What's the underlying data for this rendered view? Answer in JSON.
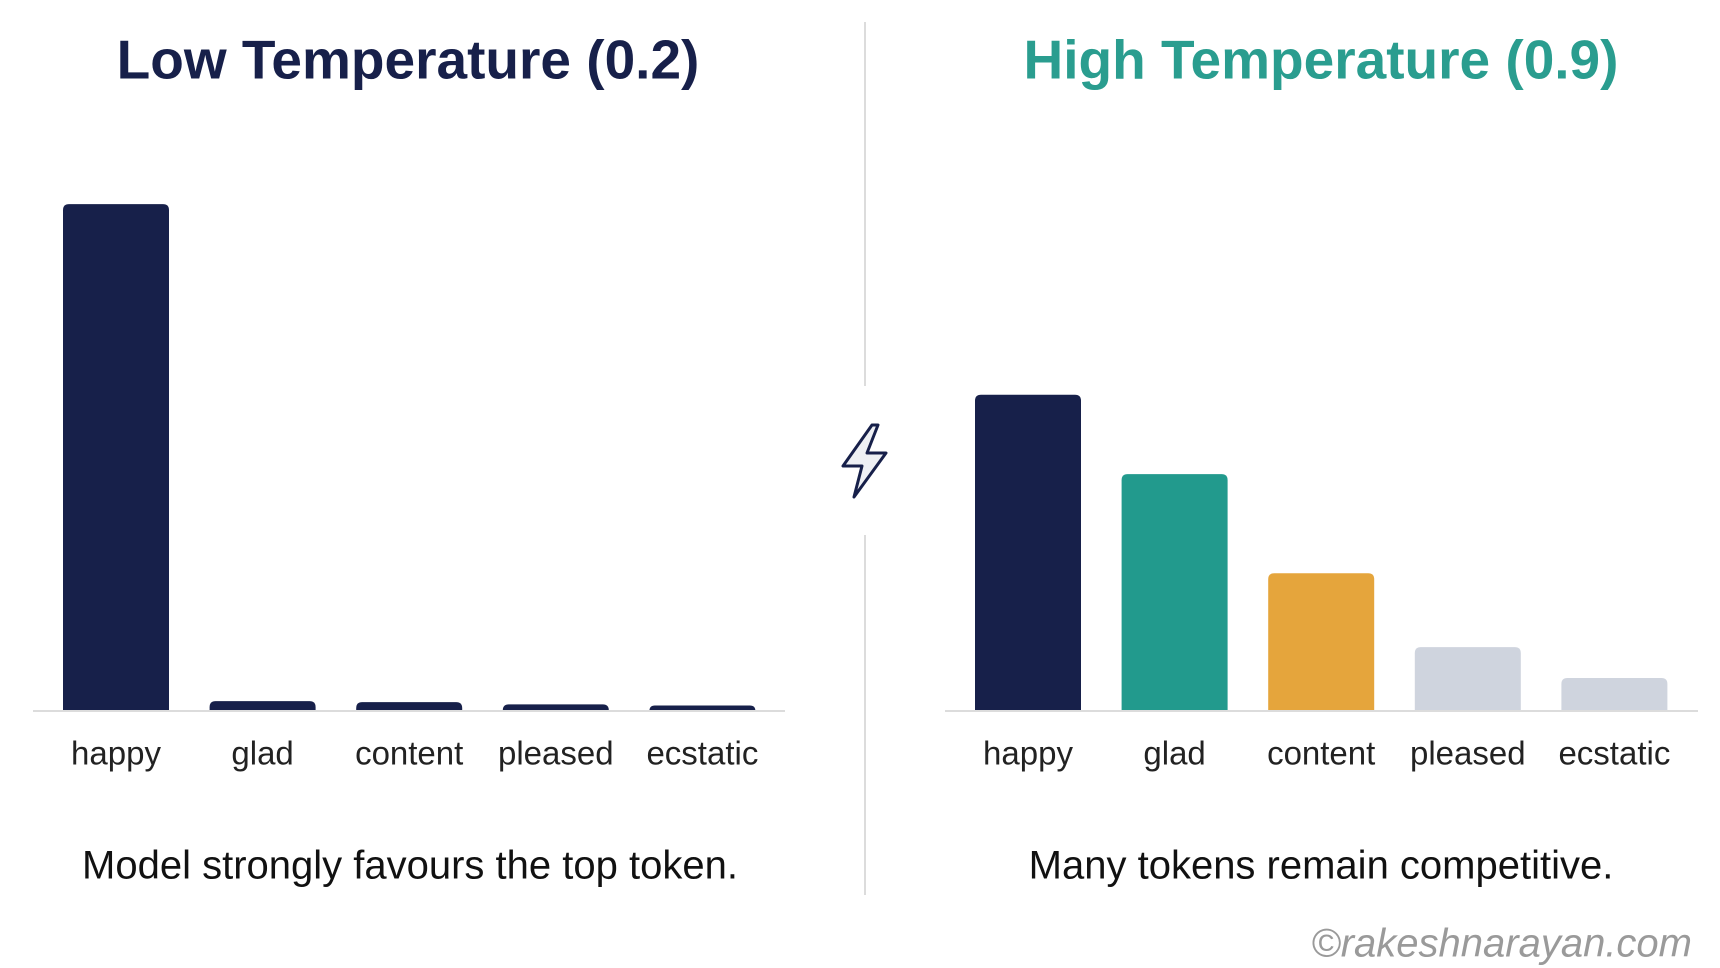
{
  "chart_data": [
    {
      "type": "bar",
      "title": "Low Temperature (0.2)",
      "title_color": "#17204a",
      "categories": [
        "happy",
        "glad",
        "content",
        "pleased",
        "ecstatic"
      ],
      "values": [
        92,
        1.8,
        1.6,
        1.2,
        1
      ],
      "colors": [
        "#17204a",
        "#17204a",
        "#17204a",
        "#17204a",
        "#17204a"
      ],
      "ylim": [
        0,
        100
      ],
      "caption": "Model strongly favours the top token."
    },
    {
      "type": "bar",
      "title": "High Temperature (0.9)",
      "title_color": "#2a9d8f",
      "categories": [
        "happy",
        "glad",
        "content",
        "pleased",
        "ecstatic"
      ],
      "values": [
        57.4,
        43,
        25,
        11.6,
        6
      ],
      "colors": [
        "#17204a",
        "#229a8d",
        "#e5a53c",
        "#cfd4de",
        "#cfd4de"
      ],
      "ylim": [
        0,
        100
      ],
      "caption": "Many tokens remain competitive."
    }
  ],
  "watermark": "©rakeshnarayan.com"
}
